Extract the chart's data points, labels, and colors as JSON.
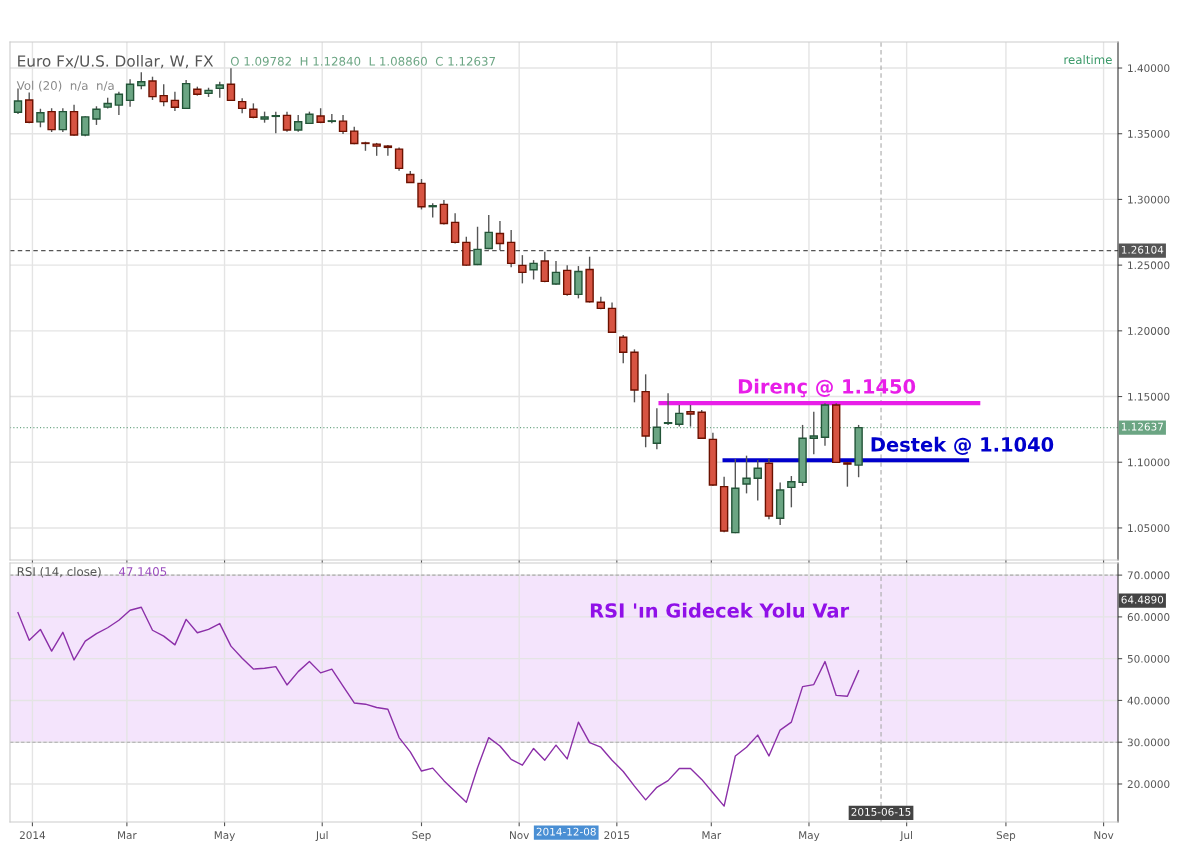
{
  "chart_data": [
    {
      "type": "candlestick",
      "title": "Euro Fx/U.S. Dollar, W, FX",
      "x": [
        "2013-12-23",
        "2013-12-30",
        "2014-01-06",
        "2014-01-13",
        "2014-01-20",
        "2014-01-27",
        "2014-02-03",
        "2014-02-10",
        "2014-02-17",
        "2014-02-24",
        "2014-03-03",
        "2014-03-10",
        "2014-03-17",
        "2014-03-24",
        "2014-03-31",
        "2014-04-07",
        "2014-04-14",
        "2014-04-21",
        "2014-04-28",
        "2014-05-05",
        "2014-05-12",
        "2014-05-19",
        "2014-05-26",
        "2014-06-02",
        "2014-06-09",
        "2014-06-16",
        "2014-06-23",
        "2014-06-30",
        "2014-07-07",
        "2014-07-14",
        "2014-07-21",
        "2014-07-28",
        "2014-08-04",
        "2014-08-11",
        "2014-08-18",
        "2014-08-25",
        "2014-09-01",
        "2014-09-08",
        "2014-09-15",
        "2014-09-22",
        "2014-09-29",
        "2014-10-06",
        "2014-10-13",
        "2014-10-20",
        "2014-10-27",
        "2014-11-03",
        "2014-11-10",
        "2014-11-17",
        "2014-11-24",
        "2014-12-01",
        "2014-12-08",
        "2014-12-15",
        "2014-12-22",
        "2014-12-29",
        "2015-01-05",
        "2015-01-12",
        "2015-01-19",
        "2015-01-26",
        "2015-02-02",
        "2015-02-09",
        "2015-02-16",
        "2015-02-23",
        "2015-03-02",
        "2015-03-09",
        "2015-03-16",
        "2015-03-23",
        "2015-03-30",
        "2015-04-06",
        "2015-04-13",
        "2015-04-20",
        "2015-04-27",
        "2015-05-04",
        "2015-05-11",
        "2015-05-18",
        "2015-05-25",
        "2015-06-01"
      ],
      "ohlc": [
        [
          1.3663,
          1.3845,
          1.365,
          1.3749
        ],
        [
          1.3757,
          1.3814,
          1.358,
          1.3587
        ],
        [
          1.359,
          1.369,
          1.3549,
          1.366
        ],
        [
          1.3668,
          1.3694,
          1.3513,
          1.3531
        ],
        [
          1.3531,
          1.3694,
          1.3513,
          1.3668
        ],
        [
          1.3668,
          1.372,
          1.3485,
          1.349
        ],
        [
          1.349,
          1.3633,
          1.348,
          1.3628
        ],
        [
          1.3612,
          1.3709,
          1.3567,
          1.3686
        ],
        [
          1.3702,
          1.3774,
          1.3692,
          1.373
        ],
        [
          1.3718,
          1.382,
          1.3642,
          1.38
        ],
        [
          1.3754,
          1.3915,
          1.3705,
          1.3876
        ],
        [
          1.3866,
          1.3967,
          1.3838,
          1.3896
        ],
        [
          1.3901,
          1.3934,
          1.3757,
          1.3782
        ],
        [
          1.379,
          1.3876,
          1.371,
          1.3744
        ],
        [
          1.3754,
          1.382,
          1.3673,
          1.3701
        ],
        [
          1.3693,
          1.3909,
          1.369,
          1.3881
        ],
        [
          1.3838,
          1.3858,
          1.379,
          1.38
        ],
        [
          1.3807,
          1.385,
          1.378,
          1.383
        ],
        [
          1.3845,
          1.3896,
          1.3774,
          1.3871
        ],
        [
          1.3876,
          1.3998,
          1.3749,
          1.3754
        ],
        [
          1.3744,
          1.377,
          1.3655,
          1.3693
        ],
        [
          1.3686,
          1.3731,
          1.3617,
          1.3625
        ],
        [
          1.3612,
          1.3668,
          1.3584,
          1.3627
        ],
        [
          1.3632,
          1.3668,
          1.3503,
          1.3637
        ],
        [
          1.364,
          1.3668,
          1.3515,
          1.3528
        ],
        [
          1.3528,
          1.3642,
          1.3515,
          1.3591
        ],
        [
          1.3579,
          1.3668,
          1.3575,
          1.3648
        ],
        [
          1.3635,
          1.3694,
          1.358,
          1.3587
        ],
        [
          1.3594,
          1.365,
          1.3579,
          1.3598
        ],
        [
          1.3596,
          1.3642,
          1.3497,
          1.3518
        ],
        [
          1.352,
          1.3553,
          1.342,
          1.3426
        ],
        [
          1.343,
          1.3439,
          1.337,
          1.3426
        ],
        [
          1.3421,
          1.343,
          1.3332,
          1.3406
        ],
        [
          1.3406,
          1.3415,
          1.3332,
          1.3396
        ],
        [
          1.3383,
          1.3396,
          1.3218,
          1.3236
        ],
        [
          1.319,
          1.3216,
          1.3125,
          1.3129
        ],
        [
          1.3122,
          1.3155,
          1.2924,
          1.2944
        ],
        [
          1.2945,
          1.297,
          1.2863,
          1.2952
        ],
        [
          1.2962,
          1.2995,
          1.281,
          1.2817
        ],
        [
          1.2825,
          1.2894,
          1.2665,
          1.2673
        ],
        [
          1.2673,
          1.2716,
          1.2495,
          1.25
        ],
        [
          1.2505,
          1.2792,
          1.25,
          1.262
        ],
        [
          1.2627,
          1.2881,
          1.262,
          1.2749
        ],
        [
          1.2741,
          1.2835,
          1.2614,
          1.2665
        ],
        [
          1.2673,
          1.2767,
          1.2483,
          1.2513
        ],
        [
          1.2498,
          1.2576,
          1.2361,
          1.2445
        ],
        [
          1.2465,
          1.2538,
          1.2391,
          1.2513
        ],
        [
          1.2531,
          1.2602,
          1.237,
          1.2376
        ],
        [
          1.2356,
          1.2531,
          1.235,
          1.2445
        ],
        [
          1.246,
          1.25,
          1.2267,
          1.2277
        ],
        [
          1.2277,
          1.2493,
          1.2247,
          1.2452
        ],
        [
          1.2467,
          1.2564,
          1.2215,
          1.2221
        ],
        [
          1.2217,
          1.226,
          1.2164,
          1.2171
        ],
        [
          1.2171,
          1.2215,
          1.1985,
          1.1989
        ],
        [
          1.1951,
          1.1969,
          1.1753,
          1.1837
        ],
        [
          1.1837,
          1.1859,
          1.1456,
          1.155
        ],
        [
          1.1537,
          1.1669,
          1.1114,
          1.12
        ],
        [
          1.1144,
          1.141,
          1.1098,
          1.1266
        ],
        [
          1.1296,
          1.1525,
          1.1284,
          1.1301
        ],
        [
          1.1289,
          1.1436,
          1.1271,
          1.1372
        ],
        [
          1.1385,
          1.1436,
          1.1271,
          1.1367
        ],
        [
          1.138,
          1.1398,
          1.1177,
          1.1182
        ],
        [
          1.1174,
          1.1225,
          1.082,
          1.0827
        ],
        [
          1.0814,
          1.089,
          1.0467,
          1.0477
        ],
        [
          1.0464,
          1.1025,
          1.046,
          1.0802
        ],
        [
          1.0834,
          1.105,
          1.0763,
          1.0878
        ],
        [
          1.0878,
          1.1017,
          1.0708,
          1.0954
        ],
        [
          1.0992,
          1.103,
          1.0566,
          1.0591
        ],
        [
          1.0574,
          1.0845,
          1.0522,
          1.0789
        ],
        [
          1.0809,
          1.0895,
          1.0657,
          1.0852
        ],
        [
          1.0847,
          1.1284,
          1.0819,
          1.1182
        ],
        [
          1.1182,
          1.1385,
          1.106,
          1.12
        ],
        [
          1.119,
          1.1449,
          1.1126,
          1.1436
        ],
        [
          1.1436,
          1.1449,
          1.0995,
          1.0999
        ],
        [
          1.0995,
          1.0999,
          1.0814,
          1.0986
        ],
        [
          1.09782,
          1.1284,
          1.0886,
          1.12637
        ]
      ],
      "series": [
        {
          "type": "line",
          "color": "#e81ee8",
          "x": [
            "2015-01-27",
            "2015-08-16"
          ],
          "values": [
            1.145,
            1.145
          ]
        },
        {
          "type": "line",
          "color": "#0000cc",
          "x": [
            "2015-03-08",
            "2015-08-09"
          ],
          "values": [
            1.1015,
            1.1015
          ]
        }
      ],
      "annotations": [
        "O 1.09782  H 1.12840  L 1.08860  C 1.12637",
        "Vol (20)  n/a  n/a",
        "realtime",
        {
          "text": "Direnç @ 1.1450",
          "x": "2015-05-12",
          "y": 1.145
        },
        {
          "text": "Destek @ 1.1040",
          "x": "2015-06-08",
          "y": 1.104
        }
      ],
      "xlim": [
        "2013-12-18",
        "2015-11-10"
      ],
      "xticks": [
        {
          "value": "2014-01-01",
          "label": null
        },
        {
          "value": "2014-03-01",
          "label": null
        },
        {
          "value": "2014-05-01",
          "label": null
        },
        {
          "value": "2014-07-01",
          "label": null
        },
        {
          "value": "2014-09-01",
          "label": null
        },
        {
          "value": "2014-11-01",
          "label": null
        },
        {
          "value": "2015-01-01",
          "label": null
        },
        {
          "value": "2015-03-01",
          "label": null
        },
        {
          "value": "2015-05-01",
          "label": null
        },
        {
          "value": "2015-07-01",
          "label": null
        },
        {
          "value": "2015-09-01",
          "label": null
        },
        {
          "value": "2015-11-01",
          "label": null
        }
      ],
      "ylim": [
        1.0256,
        1.4198
      ],
      "yticks": [
        {
          "value": 1.05,
          "label": "1.05000"
        },
        {
          "value": 1.1,
          "label": "1.10000"
        },
        {
          "value": 1.15,
          "label": "1.15000"
        },
        {
          "value": 1.2,
          "label": "1.20000"
        },
        {
          "value": 1.25,
          "label": "1.25000"
        },
        {
          "value": 1.3,
          "label": "1.30000"
        },
        {
          "value": 1.35,
          "label": "1.35000"
        },
        {
          "value": 1.4,
          "label": "1.40000"
        }
      ],
      "ref_lines": [
        {
          "axis": "y",
          "value": 1.12637,
          "label": "1.12637",
          "color": "#6ba583",
          "line_style": "dotted"
        },
        {
          "axis": "y",
          "value": 1.26104,
          "label": "1.26104",
          "color": "#555555",
          "line_style": "dashed"
        },
        {
          "axis": "x",
          "value": "2015-06-15",
          "color": "#aaaaaa",
          "line_style": "dashed"
        }
      ],
      "grid": true,
      "tick_labels": "y"
    },
    {
      "type": "line",
      "title": "RSI (14, close)",
      "color": "#8b2fa8",
      "x": [
        "2013-12-23",
        "2013-12-30",
        "2014-01-06",
        "2014-01-13",
        "2014-01-20",
        "2014-01-27",
        "2014-02-03",
        "2014-02-10",
        "2014-02-17",
        "2014-02-24",
        "2014-03-03",
        "2014-03-10",
        "2014-03-17",
        "2014-03-24",
        "2014-03-31",
        "2014-04-07",
        "2014-04-14",
        "2014-04-21",
        "2014-04-28",
        "2014-05-05",
        "2014-05-12",
        "2014-05-19",
        "2014-05-26",
        "2014-06-02",
        "2014-06-09",
        "2014-06-16",
        "2014-06-23",
        "2014-06-30",
        "2014-07-07",
        "2014-07-14",
        "2014-07-21",
        "2014-07-28",
        "2014-08-04",
        "2014-08-11",
        "2014-08-18",
        "2014-08-25",
        "2014-09-01",
        "2014-09-08",
        "2014-09-15",
        "2014-09-22",
        "2014-09-29",
        "2014-10-06",
        "2014-10-13",
        "2014-10-20",
        "2014-10-27",
        "2014-11-03",
        "2014-11-10",
        "2014-11-17",
        "2014-11-24",
        "2014-12-01",
        "2014-12-08",
        "2014-12-15",
        "2014-12-22",
        "2014-12-29",
        "2015-01-05",
        "2015-01-12",
        "2015-01-19",
        "2015-01-26",
        "2015-02-02",
        "2015-02-09",
        "2015-02-16",
        "2015-02-23",
        "2015-03-02",
        "2015-03-09",
        "2015-03-16",
        "2015-03-23",
        "2015-03-30",
        "2015-04-06",
        "2015-04-13",
        "2015-04-20",
        "2015-04-27",
        "2015-05-04",
        "2015-05-11",
        "2015-05-18",
        "2015-05-25",
        "2015-06-01"
      ],
      "values": [
        61.0,
        54.4,
        57.0,
        51.8,
        56.3,
        49.7,
        54.2,
        56.0,
        57.4,
        59.2,
        61.6,
        62.3,
        56.8,
        55.4,
        53.3,
        59.4,
        56.2,
        57.0,
        58.4,
        53.0,
        50.1,
        47.5,
        47.7,
        48.1,
        43.7,
        46.9,
        49.3,
        46.6,
        47.5,
        43.4,
        39.4,
        39.1,
        38.3,
        37.9,
        31.1,
        27.7,
        23.1,
        23.8,
        20.8,
        18.2,
        15.6,
        23.9,
        31.1,
        29.1,
        25.9,
        24.5,
        28.5,
        25.7,
        29.3,
        26.0,
        34.8,
        29.9,
        28.8,
        25.7,
        23.0,
        19.5,
        16.2,
        19.2,
        20.8,
        23.7,
        23.7,
        21.1,
        17.9,
        14.7,
        26.7,
        28.8,
        31.7,
        26.7,
        32.9,
        34.8,
        43.3,
        43.8,
        49.3,
        41.2,
        41.0,
        47.1
      ],
      "annotations": [
        "47.1405",
        "RSI 'ın Gidecek Yolu Var",
        "64.4890",
        "2014-12-08"
      ],
      "bands": [
        {
          "axis": "y",
          "from": 30,
          "to": 70,
          "color": "#f4e4fc"
        }
      ],
      "ref_lines": [
        {
          "axis": "x",
          "value": "2015-06-15",
          "label": "2015-06-15",
          "color": "#aaaaaa",
          "line_style": "dashed"
        }
      ],
      "xlim": [
        "2013-12-18",
        "2015-11-10"
      ],
      "xticks": [
        {
          "value": "2014-01-01",
          "label": "2014"
        },
        {
          "value": "2014-03-01",
          "label": "Mar"
        },
        {
          "value": "2014-05-01",
          "label": "May"
        },
        {
          "value": "2014-07-01",
          "label": "Jul"
        },
        {
          "value": "2014-09-01",
          "label": "Sep"
        },
        {
          "value": "2014-11-01",
          "label": "Nov"
        },
        {
          "value": "2015-01-01",
          "label": "2015"
        },
        {
          "value": "2015-03-01",
          "label": "Mar"
        },
        {
          "value": "2015-05-01",
          "label": "May"
        },
        {
          "value": "2015-07-01",
          "label": "Jul"
        },
        {
          "value": "2015-09-01",
          "label": "Sep"
        },
        {
          "value": "2015-11-01",
          "label": "Nov"
        }
      ],
      "ylim": [
        10.9,
        72.9
      ],
      "yticks": [
        {
          "value": 20,
          "label": "20.0000"
        },
        {
          "value": 30,
          "label": "30.0000"
        },
        {
          "value": 40,
          "label": "40.0000"
        },
        {
          "value": 50,
          "label": "50.0000"
        },
        {
          "value": 60,
          "label": "60.0000"
        },
        {
          "value": 70,
          "label": "70.0000"
        }
      ],
      "grid": true
    }
  ]
}
